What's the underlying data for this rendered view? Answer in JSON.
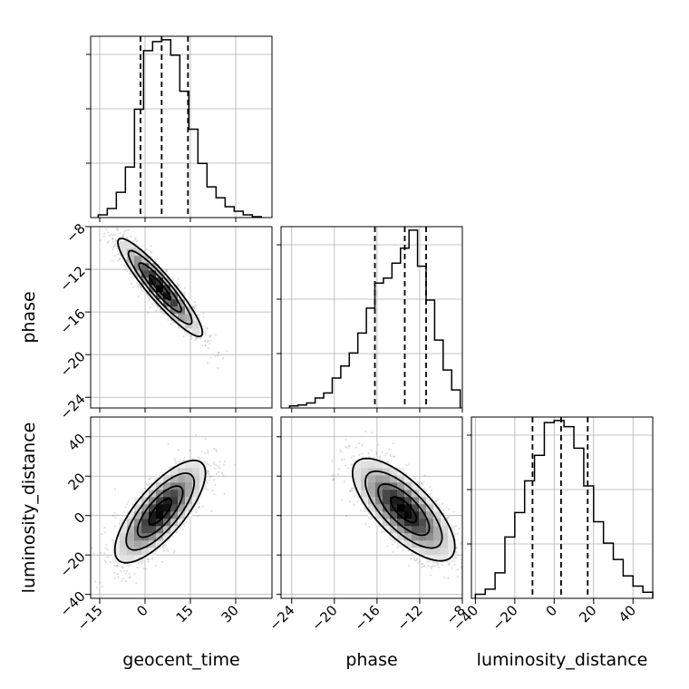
{
  "chart_data": {
    "type": "corner",
    "parameters": [
      "geocent_time",
      "phase",
      "luminosity_distance"
    ],
    "axis_labels": {
      "geocent_time": "geocent_time",
      "phase": "phase",
      "luminosity_distance": "luminosity_distance"
    },
    "ranges": {
      "geocent_time": [
        -18,
        42
      ],
      "phase": [
        -25,
        -8
      ],
      "luminosity_distance": [
        -42,
        50
      ]
    },
    "ticks": {
      "geocent_time": [
        -15,
        0,
        15,
        30
      ],
      "phase": [
        -24,
        -20,
        -16,
        -12,
        -8
      ],
      "luminosity_distance": [
        -40,
        -20,
        0,
        20,
        40
      ]
    },
    "tick_labels": {
      "geocent_time": [
        "−15",
        "0",
        "15",
        "30"
      ],
      "phase": [
        "−24",
        "−20",
        "−16",
        "−12",
        "−8"
      ],
      "luminosity_distance": [
        "−40",
        "−20",
        "0",
        "20",
        "40"
      ]
    },
    "histograms": {
      "geocent_time": {
        "bin_edges": [
          -15.5,
          -12.5,
          -9.5,
          -6.5,
          -3.5,
          -0.5,
          2.5,
          5.5,
          8.5,
          11.5,
          14.5,
          17.5,
          20.5,
          23.5,
          26.5,
          29.5,
          32.5,
          35.5,
          38.5
        ],
        "counts": [
          3,
          10,
          28,
          56,
          120,
          185,
          195,
          197,
          180,
          140,
          98,
          60,
          34,
          22,
          12,
          7,
          3,
          1
        ],
        "quantiles": [
          -1.5,
          5.5,
          14.2
        ]
      },
      "phase": {
        "bin_edges": [
          -24.2,
          -23.4,
          -22.6,
          -21.8,
          -21.0,
          -20.2,
          -19.4,
          -18.6,
          -17.8,
          -17.0,
          -16.2,
          -15.4,
          -14.6,
          -13.8,
          -13.0,
          -12.2,
          -11.4,
          -10.6,
          -9.8,
          -9.0,
          -8.2
        ],
        "counts": [
          2,
          3,
          5,
          10,
          15,
          30,
          42,
          55,
          75,
          100,
          125,
          130,
          145,
          160,
          178,
          142,
          108,
          68,
          38,
          18
        ],
        "quantiles": [
          -16.2,
          -13.4,
          -11.4
        ]
      },
      "luminosity_distance": {
        "bin_edges": [
          -40,
          -35,
          -30,
          -25,
          -20,
          -15,
          -10,
          -5,
          0,
          5,
          10,
          15,
          20,
          25,
          30,
          35,
          40,
          45,
          50
        ],
        "counts": [
          4,
          9,
          25,
          60,
          84,
          115,
          140,
          172,
          174,
          168,
          147,
          110,
          75,
          54,
          38,
          22,
          12,
          6
        ],
        "quantiles": [
          -11,
          3.5,
          17
        ]
      }
    },
    "correlations": {
      "phase_vs_geocent_time": {
        "mean": [
          5,
          -13.7
        ],
        "std": [
          7,
          2.3
        ],
        "rho": -0.92
      },
      "luminosity_distance_vs_geocent_time": {
        "mean": [
          5,
          2
        ],
        "std": [
          7.5,
          13
        ],
        "rho": 0.75
      },
      "luminosity_distance_vs_phase": {
        "mean": [
          -13.5,
          3
        ],
        "std": [
          2.4,
          13
        ],
        "rho": -0.72
      }
    },
    "grid": true
  }
}
